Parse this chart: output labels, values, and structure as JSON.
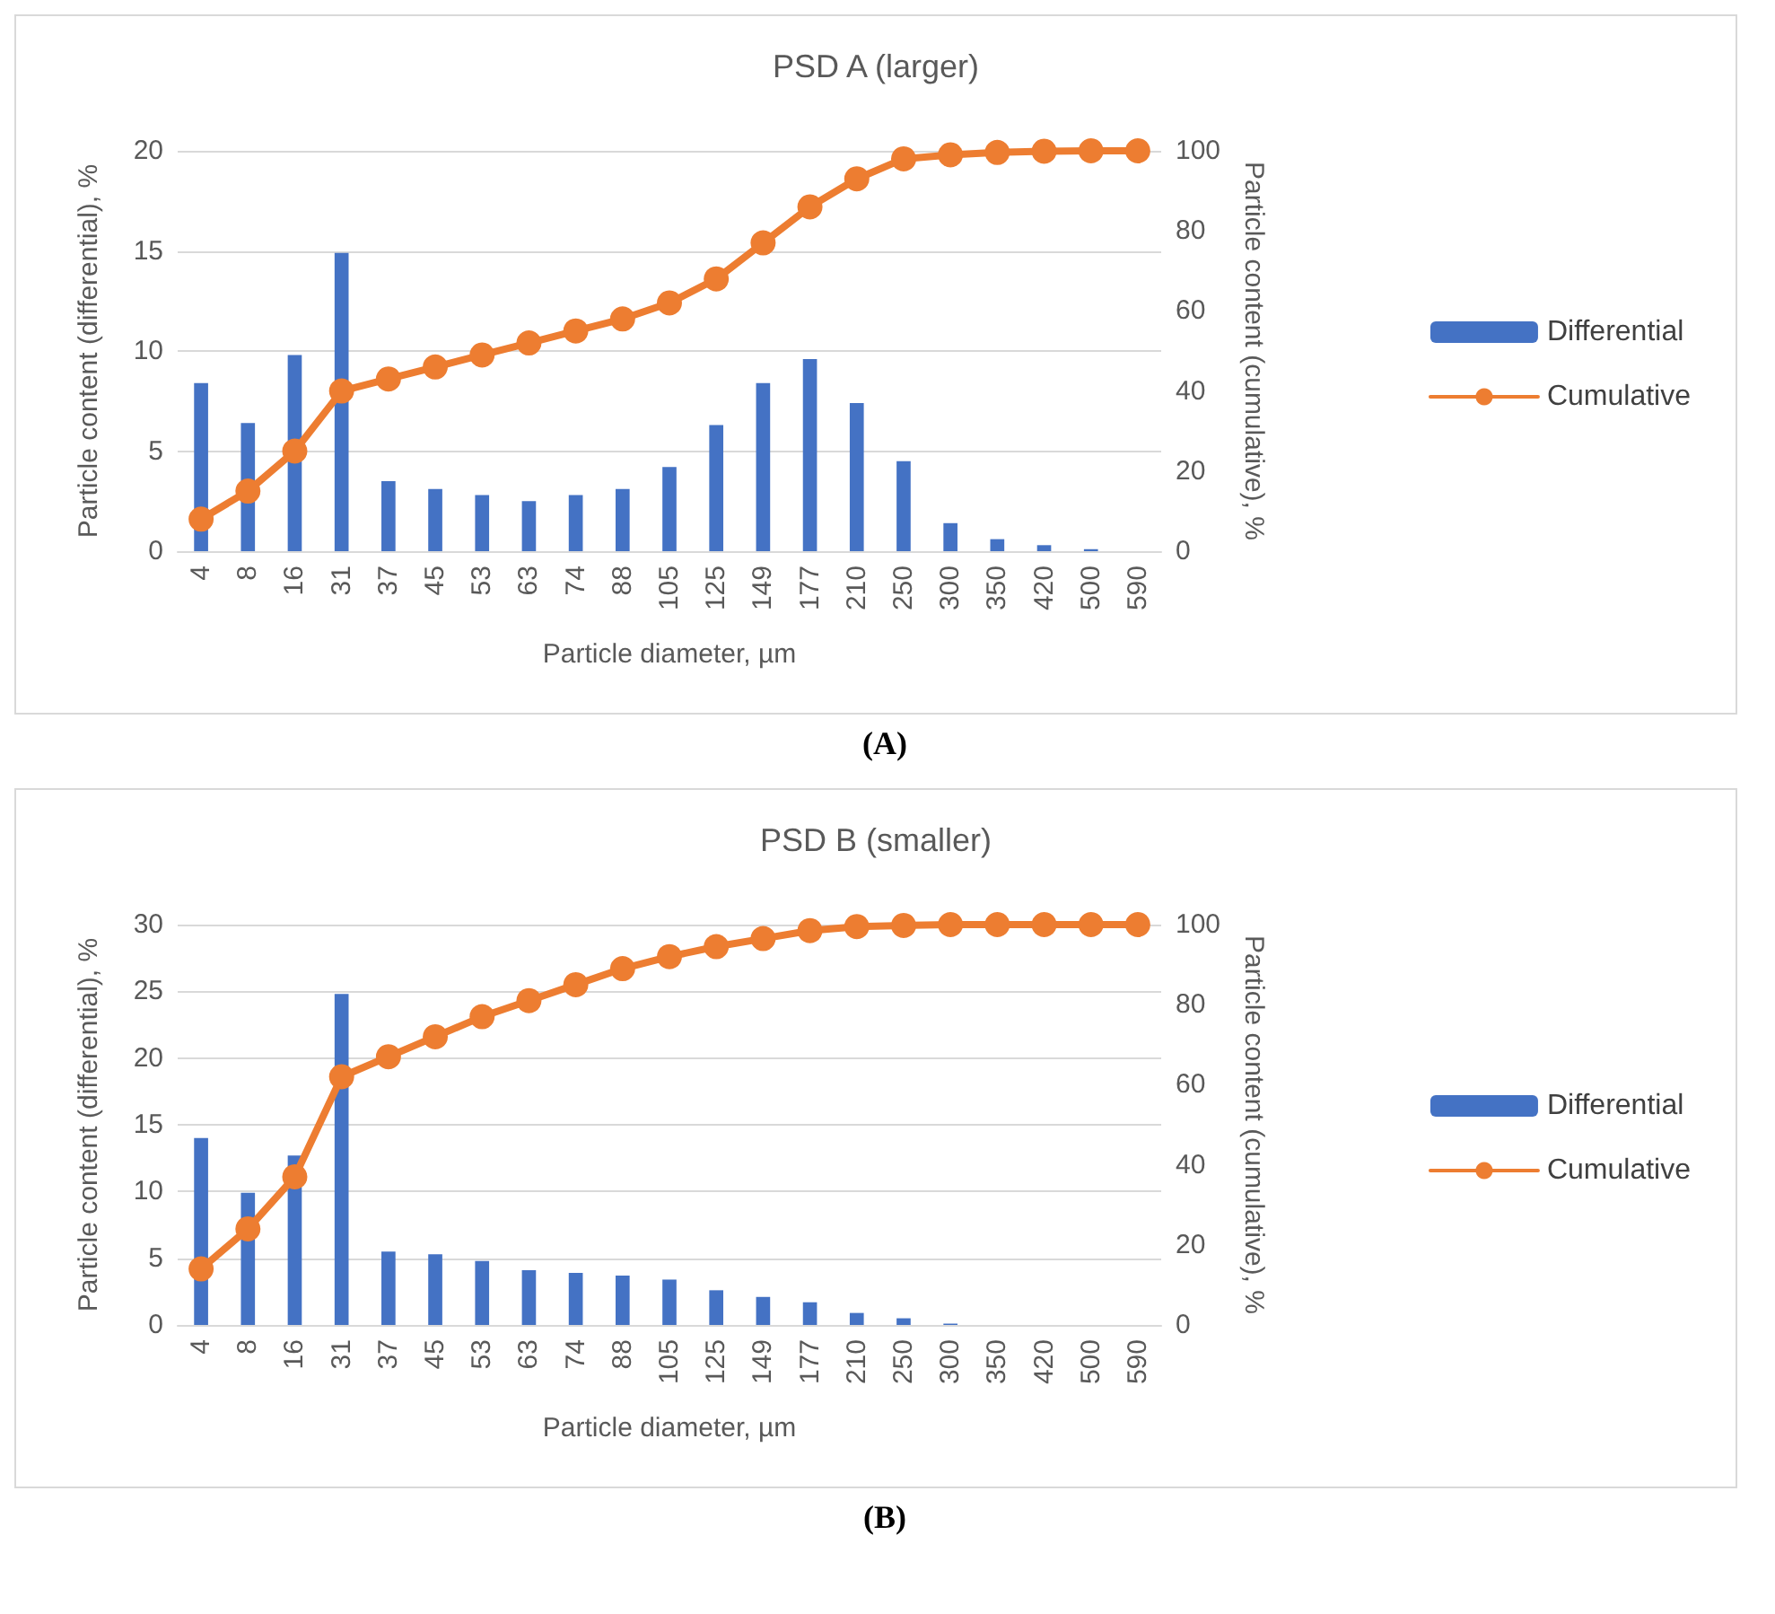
{
  "chart_data": [
    {
      "type": "bar",
      "title": "PSD A (larger)",
      "xlabel": "Particle diameter, µm",
      "ylabel": "Particle content (differential), %",
      "y2label": "Particle content (cumulative), %",
      "categories": [
        "4",
        "8",
        "16",
        "31",
        "37",
        "45",
        "53",
        "63",
        "74",
        "88",
        "105",
        "125",
        "149",
        "177",
        "210",
        "250",
        "300",
        "350",
        "420",
        "500",
        "590"
      ],
      "series": [
        {
          "name": "Differential",
          "color": "#4472c4",
          "values": [
            8.4,
            6.4,
            9.8,
            14.9,
            3.5,
            3.1,
            2.8,
            2.5,
            2.8,
            3.1,
            4.2,
            6.3,
            8.4,
            9.6,
            7.4,
            4.5,
            1.4,
            0.6,
            0.3,
            0.1,
            0
          ]
        },
        {
          "name": "Cumulative",
          "type": "line",
          "axis": "y2",
          "color": "#ed7d31",
          "marker": "circle",
          "values": [
            8,
            15,
            25,
            40,
            43,
            46,
            49,
            52,
            55,
            58,
            62,
            68,
            77,
            86,
            93,
            98,
            99,
            99.6,
            99.9,
            100,
            100
          ]
        }
      ],
      "ylim": [
        0,
        20
      ],
      "yticks": [
        0,
        5,
        10,
        15,
        20
      ],
      "y2lim": [
        0,
        100
      ],
      "y2ticks": [
        0,
        20,
        40,
        60,
        80,
        100
      ],
      "grid": "y",
      "legend": "right",
      "annotations": [
        "(A)"
      ]
    },
    {
      "type": "bar",
      "title": "PSD B (smaller)",
      "xlabel": "Particle diameter, µm",
      "ylabel": "Particle content (differential), %",
      "y2label": "Particle content (cumulative), %",
      "categories": [
        "4",
        "8",
        "16",
        "31",
        "37",
        "45",
        "53",
        "63",
        "74",
        "88",
        "105",
        "125",
        "149",
        "177",
        "210",
        "250",
        "300",
        "350",
        "420",
        "500",
        "590"
      ],
      "series": [
        {
          "name": "Differential",
          "color": "#4472c4",
          "values": [
            14,
            9.9,
            12.7,
            24.8,
            5.5,
            5.3,
            4.8,
            4.1,
            3.9,
            3.7,
            3.4,
            2.6,
            2.1,
            1.7,
            0.9,
            0.5,
            0.1,
            0,
            0,
            0,
            0
          ]
        },
        {
          "name": "Cumulative",
          "type": "line",
          "axis": "y2",
          "color": "#ed7d31",
          "marker": "circle",
          "values": [
            14,
            24,
            37,
            62,
            67,
            72,
            77,
            81,
            85,
            89,
            92,
            94.5,
            96.5,
            98.5,
            99.5,
            99.8,
            100,
            100,
            100,
            100,
            100
          ]
        }
      ],
      "ylim": [
        0,
        30
      ],
      "yticks": [
        0,
        5,
        10,
        15,
        20,
        25,
        30
      ],
      "y2lim": [
        0,
        100
      ],
      "y2ticks": [
        0,
        20,
        40,
        60,
        80,
        100
      ],
      "grid": "y",
      "legend": "right",
      "annotations": [
        "(B)"
      ]
    }
  ]
}
